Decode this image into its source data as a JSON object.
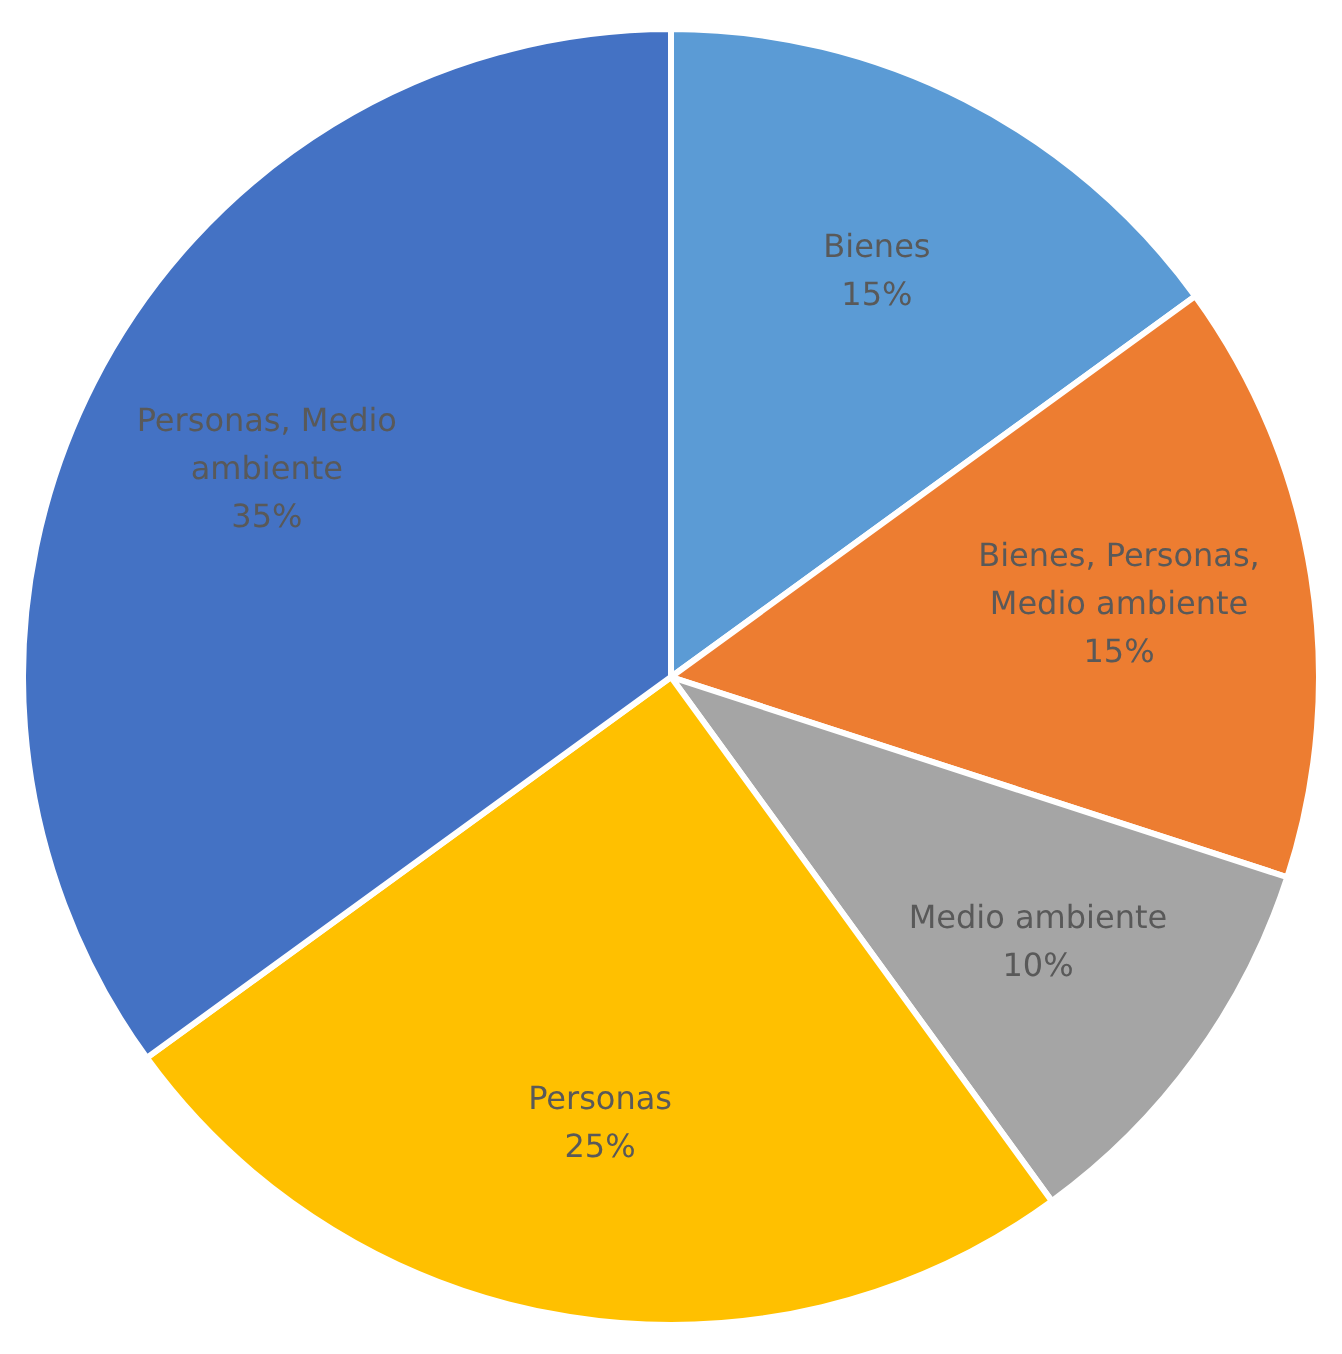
{
  "chart_data": {
    "type": "pie",
    "categories": [
      "Bienes",
      "Bienes, Personas, Medio ambiente",
      "Medio ambiente",
      "Personas",
      "Personas, Medio ambiente"
    ],
    "values": [
      15,
      15,
      10,
      25,
      35
    ],
    "colors": [
      "#5b9bd5",
      "#ed7d31",
      "#a5a5a5",
      "#ffc000",
      "#4472c4"
    ],
    "value_labels": [
      "15%",
      "15%",
      "10%",
      "25%",
      "35%"
    ],
    "legend": false
  }
}
